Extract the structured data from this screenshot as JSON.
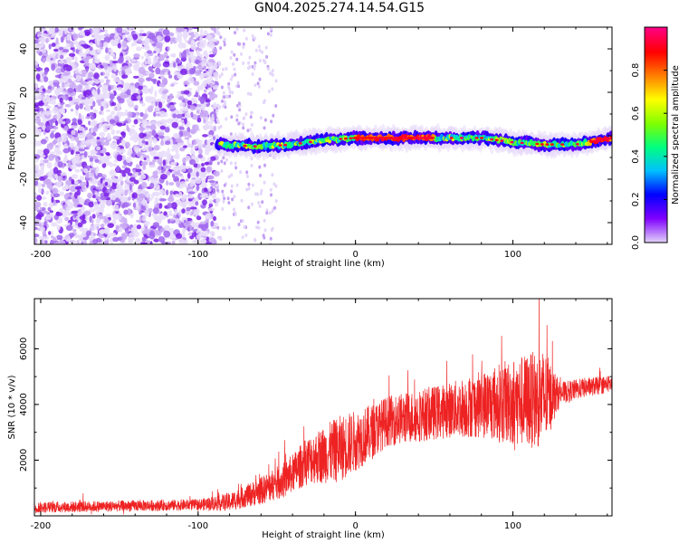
{
  "title": "GN04.2025.274.14.54.G15",
  "chart_data": [
    {
      "type": "heatmap",
      "xlabel": "Height of straight line (km)",
      "ylabel": "Frequency (Hz)",
      "xlim": [
        -204,
        163
      ],
      "ylim": [
        -50,
        50
      ],
      "x_ticks": [
        -200,
        -100,
        0,
        100
      ],
      "y_ticks": [
        40,
        20,
        0,
        -20,
        -40
      ],
      "colorbar": {
        "label": "Normalized spectral amplitude",
        "range": [
          0,
          1
        ],
        "ticks": [
          "0.0",
          "0.2",
          "0.4",
          "0.6",
          "0.8"
        ],
        "tick_values": [
          0,
          0.2,
          0.4,
          0.6,
          0.8
        ],
        "colormap": [
          "#e0d0f8",
          "#8000ff",
          "#0000ff",
          "#00c0ff",
          "#00ff80",
          "#80ff00",
          "#ffff00",
          "#ff8000",
          "#ff0000",
          "#ff0080"
        ]
      },
      "signal_band": {
        "noise_region_x": [
          -204,
          -88
        ],
        "sparse_noise_x": [
          -88,
          -50
        ],
        "center_frequency_hz": [
          [
            -88,
            -4
          ],
          [
            -60,
            -5
          ],
          [
            -40,
            -4
          ],
          [
            -20,
            -2
          ],
          [
            0,
            -1
          ],
          [
            40,
            -1
          ],
          [
            80,
            -1
          ],
          [
            100,
            -3
          ],
          [
            120,
            -4
          ],
          [
            140,
            -4
          ],
          [
            163,
            -1
          ]
        ],
        "peak_region_x": [
          0,
          50
        ]
      }
    },
    {
      "type": "line",
      "xlabel": "Height of straight line (km)",
      "ylabel": "SNR (10 * v/v)",
      "xlim": [
        -204,
        163
      ],
      "ylim": [
        0,
        7800
      ],
      "x_ticks": [
        -200,
        -100,
        0,
        100
      ],
      "y_ticks": [
        2000,
        4000,
        6000
      ],
      "color": "#ee2222",
      "trend": [
        [
          -204,
          300
        ],
        [
          -150,
          350
        ],
        [
          -100,
          400
        ],
        [
          -80,
          500
        ],
        [
          -60,
          900
        ],
        [
          -45,
          1300
        ],
        [
          -30,
          2000
        ],
        [
          -20,
          2200
        ],
        [
          -10,
          2400
        ],
        [
          0,
          2700
        ],
        [
          10,
          3000
        ],
        [
          20,
          3400
        ],
        [
          40,
          3600
        ],
        [
          60,
          3800
        ],
        [
          80,
          4000
        ],
        [
          100,
          4100
        ],
        [
          120,
          4200
        ],
        [
          130,
          4400
        ],
        [
          145,
          4600
        ],
        [
          163,
          4750
        ]
      ],
      "spread": [
        [
          -204,
          200
        ],
        [
          -100,
          200
        ],
        [
          -70,
          400
        ],
        [
          -40,
          700
        ],
        [
          -10,
          1200
        ],
        [
          20,
          900
        ],
        [
          60,
          1000
        ],
        [
          80,
          1200
        ],
        [
          100,
          1600
        ],
        [
          120,
          1800
        ],
        [
          130,
          400
        ],
        [
          163,
          300
        ]
      ]
    }
  ]
}
